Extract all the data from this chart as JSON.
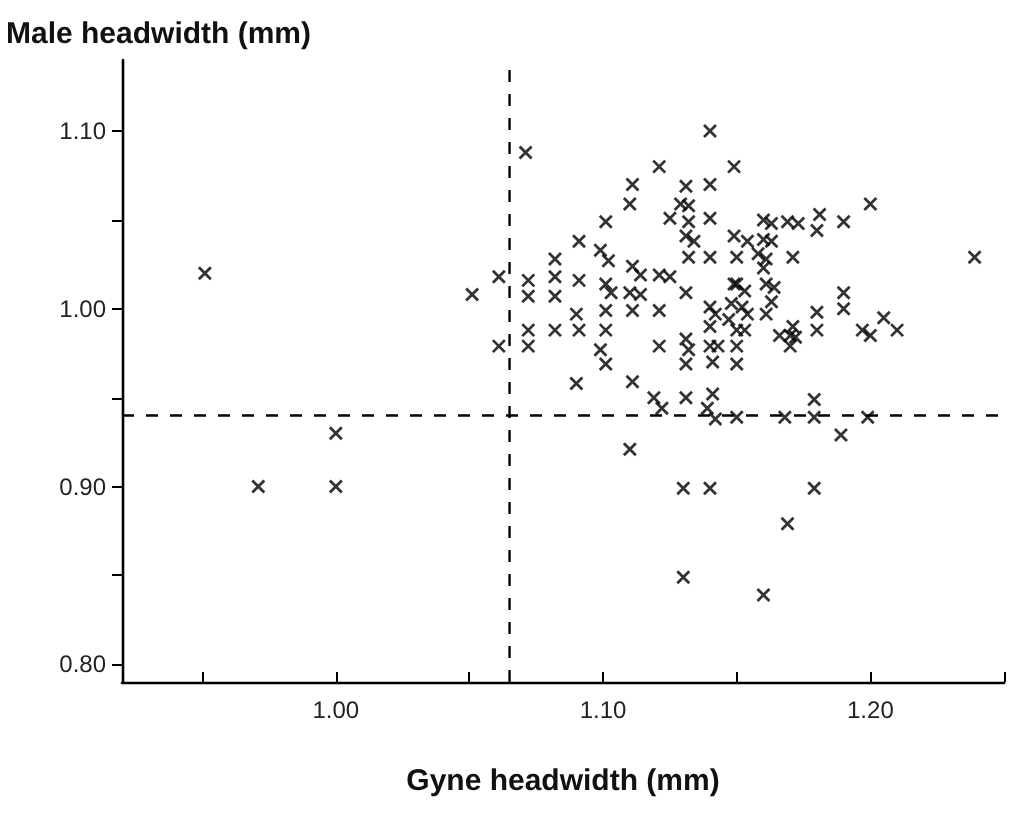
{
  "chart_data": {
    "type": "scatter",
    "xlabel": "Gyne headwidth (mm)",
    "ylabel": "Male headwidth (mm)",
    "xlim": [
      0.92,
      1.25
    ],
    "ylim": [
      0.79,
      1.14
    ],
    "xticks": [
      {
        "value": 0.95,
        "label": null
      },
      {
        "value": 1.0,
        "label": "1.00"
      },
      {
        "value": 1.05,
        "label": null
      },
      {
        "value": 1.1,
        "label": "1.10"
      },
      {
        "value": 1.15,
        "label": null
      },
      {
        "value": 1.2,
        "label": "1.20"
      },
      {
        "value": 1.25,
        "label": null
      }
    ],
    "yticks": [
      {
        "value": 0.8,
        "label": "0.80"
      },
      {
        "value": 0.85,
        "label": null
      },
      {
        "value": 0.9,
        "label": "0.90"
      },
      {
        "value": 0.95,
        "label": null
      },
      {
        "value": 1.0,
        "label": "1.00"
      },
      {
        "value": 1.05,
        "label": null
      },
      {
        "value": 1.1,
        "label": "1.10"
      }
    ],
    "marker": "cross",
    "grid": false,
    "ref_lines": [
      {
        "axis": "x",
        "value": 1.065,
        "color": "#000000",
        "line_style": "dashed"
      },
      {
        "axis": "y",
        "value": 0.94,
        "color": "#000000",
        "line_style": "dashed"
      }
    ],
    "series": [
      {
        "color": "#000000",
        "x": [
          0.951,
          0.971,
          1.0,
          1.0,
          1.051,
          1.071,
          1.14,
          1.121,
          1.149,
          1.111,
          1.11,
          1.131,
          1.14,
          1.129,
          1.132,
          1.101,
          1.125,
          1.132,
          1.14,
          1.091,
          1.131,
          1.134,
          1.149,
          1.099,
          1.102,
          1.132,
          1.14,
          1.082,
          1.111,
          1.114,
          1.121,
          1.125,
          1.149,
          1.061,
          1.072,
          1.082,
          1.091,
          1.072,
          1.082,
          1.101,
          1.103,
          1.11,
          1.114,
          1.131,
          1.09,
          1.101,
          1.111,
          1.121,
          1.14,
          1.142,
          1.072,
          1.082,
          1.091,
          1.101,
          1.14,
          1.061,
          1.072,
          1.099,
          1.121,
          1.131,
          1.132,
          1.14,
          1.143,
          1.101,
          1.131,
          1.141,
          1.09,
          1.111,
          1.119,
          1.131,
          1.141,
          1.122,
          1.139,
          1.142,
          1.15,
          1.168,
          1.179,
          1.179,
          1.189,
          1.199,
          1.11,
          1.13,
          1.14,
          1.179,
          1.169,
          1.13,
          1.16,
          1.2,
          1.16,
          1.163,
          1.169,
          1.173,
          1.181,
          1.18,
          1.19,
          1.154,
          1.16,
          1.163,
          1.15,
          1.158,
          1.161,
          1.16,
          1.171,
          1.239,
          1.15,
          1.153,
          1.161,
          1.164,
          1.19,
          1.148,
          1.152,
          1.154,
          1.163,
          1.161,
          1.147,
          1.15,
          1.153,
          1.18,
          1.19,
          1.205,
          1.18,
          1.171,
          1.17,
          1.172,
          1.17,
          1.166,
          1.197,
          1.2,
          1.21,
          1.15,
          1.15
        ],
        "values": [
          1.02,
          0.9,
          0.9,
          0.93,
          1.008,
          1.088,
          1.1,
          1.08,
          1.08,
          1.07,
          1.059,
          1.069,
          1.07,
          1.059,
          1.058,
          1.049,
          1.051,
          1.049,
          1.051,
          1.038,
          1.041,
          1.038,
          1.041,
          1.033,
          1.027,
          1.029,
          1.029,
          1.028,
          1.024,
          1.019,
          1.019,
          1.018,
          1.014,
          1.018,
          1.016,
          1.018,
          1.016,
          1.007,
          1.007,
          1.014,
          1.009,
          1.009,
          1.008,
          1.009,
          0.997,
          0.999,
          0.999,
          0.999,
          1.001,
          0.997,
          0.988,
          0.988,
          0.988,
          0.988,
          0.99,
          0.979,
          0.979,
          0.977,
          0.979,
          0.983,
          0.977,
          0.979,
          0.979,
          0.969,
          0.969,
          0.97,
          0.958,
          0.959,
          0.95,
          0.95,
          0.952,
          0.944,
          0.944,
          0.938,
          0.939,
          0.939,
          0.949,
          0.939,
          0.929,
          0.939,
          0.921,
          0.899,
          0.899,
          0.899,
          0.879,
          0.849,
          0.839,
          1.059,
          1.05,
          1.048,
          1.049,
          1.048,
          1.053,
          1.044,
          1.049,
          1.038,
          1.039,
          1.038,
          1.029,
          1.031,
          1.028,
          1.023,
          1.029,
          1.029,
          1.014,
          1.01,
          1.014,
          1.012,
          1.009,
          1.003,
          1.001,
          0.997,
          1.004,
          0.997,
          0.994,
          0.988,
          0.988,
          0.998,
          1.0,
          0.995,
          0.988,
          0.99,
          0.985,
          0.984,
          0.979,
          0.985,
          0.988,
          0.985,
          0.988,
          0.979,
          0.969
        ]
      }
    ]
  }
}
